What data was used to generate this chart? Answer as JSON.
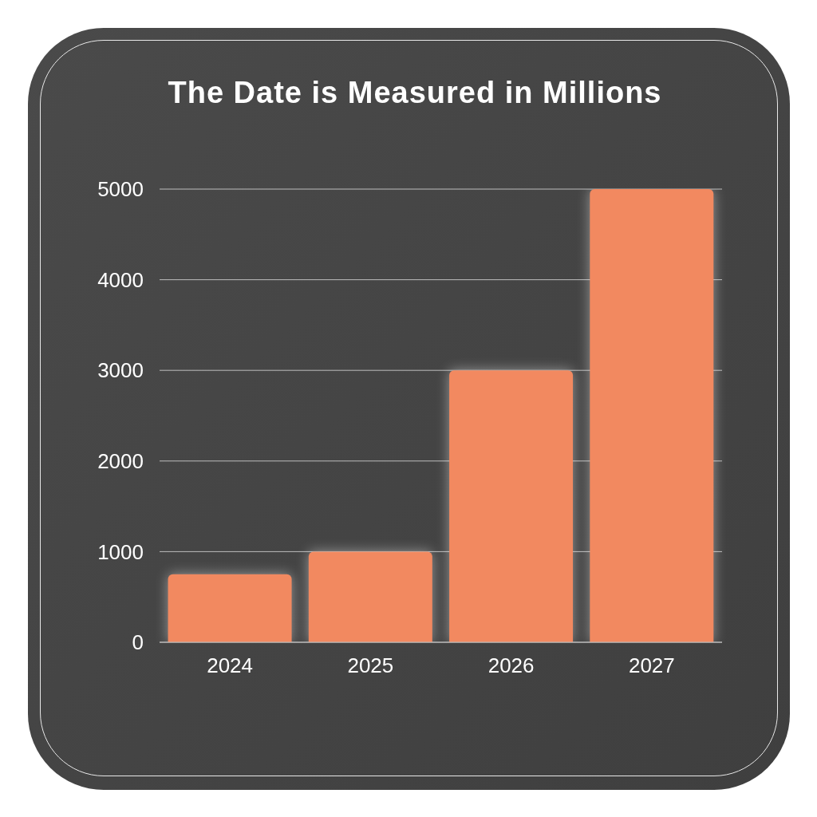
{
  "chart_data": {
    "type": "bar",
    "title": "The Date is Measured in Millions",
    "categories": [
      "2024",
      "2025",
      "2026",
      "2027"
    ],
    "values": [
      750,
      1000,
      3000,
      5000
    ],
    "color": "#f28960",
    "ylim": [
      0,
      5000
    ],
    "yticks": [
      0,
      1000,
      2000,
      3000,
      4000,
      5000
    ],
    "grid": "y"
  }
}
